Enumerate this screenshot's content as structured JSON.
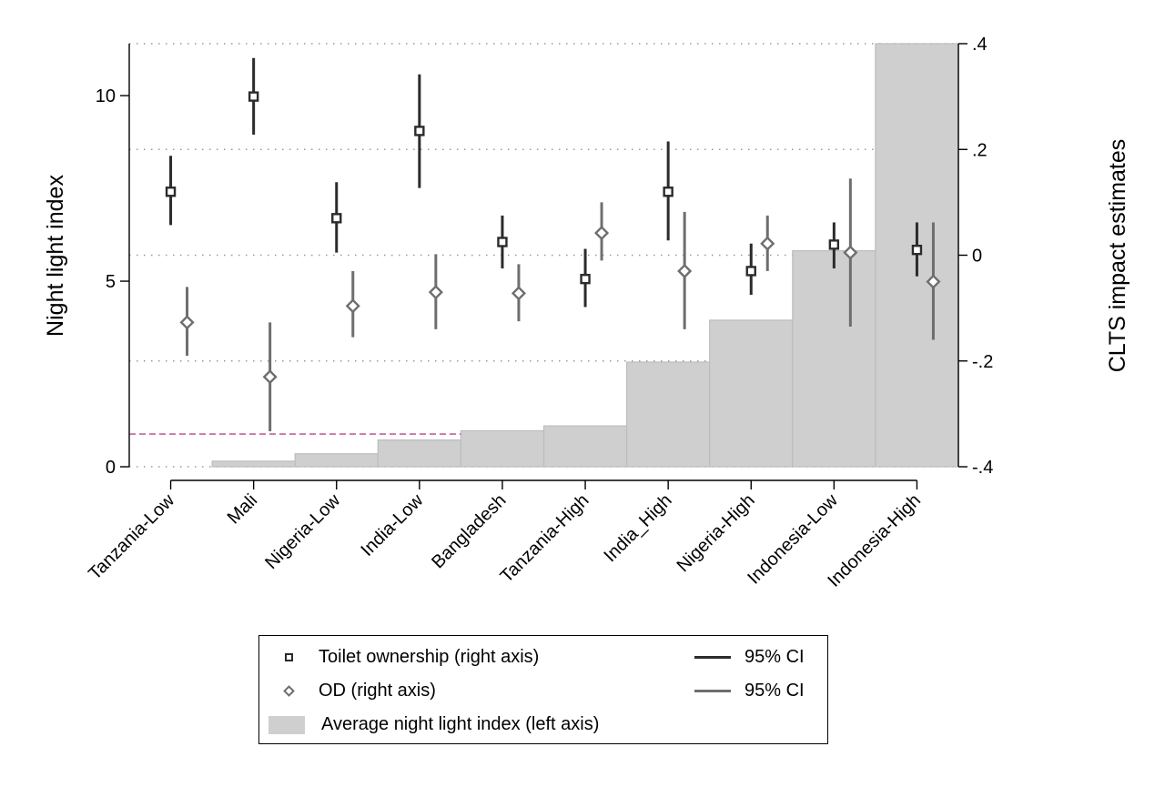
{
  "chart_data": {
    "type": "bar",
    "categories": [
      "Tanzania-Low",
      "Mali",
      "Nigeria-Low",
      "India-Low",
      "Bangladesh",
      "Tanzania-High",
      "India_High",
      "Nigeria-High",
      "Indonesia-Low",
      "Indonesia-High"
    ],
    "left_axis": {
      "label": "Night light index",
      "ylim": [
        0,
        11.4
      ],
      "ticks": [
        0,
        5,
        10
      ],
      "tick_labels": [
        "0",
        "5",
        "10"
      ]
    },
    "right_axis": {
      "label": "CLTS impact estimates",
      "ylim": [
        -0.4,
        0.4
      ],
      "ticks": [
        -0.4,
        -0.2,
        0,
        0.2,
        0.4
      ],
      "tick_labels": [
        "-.4",
        "-.2",
        "0",
        ".2",
        ".4"
      ]
    },
    "series": [
      {
        "name": "Average night light index (left axis)",
        "kind": "bar",
        "axis": "left",
        "color": "#cfcfcf",
        "values": [
          0,
          0.15,
          0.35,
          0.72,
          0.97,
          1.1,
          2.82,
          3.95,
          5.82,
          11.4
        ]
      },
      {
        "name": "Toilet ownership (right axis)",
        "kind": "point",
        "axis": "right",
        "color": "#2b2b2b",
        "values": [
          0.12,
          0.3,
          0.07,
          0.235,
          0.025,
          -0.045,
          0.12,
          -0.03,
          0.02,
          0.01
        ],
        "ci_low": [
          0.057,
          0.228,
          0.005,
          0.127,
          -0.025,
          -0.098,
          0.028,
          -0.075,
          -0.025,
          -0.04
        ],
        "ci_high": [
          0.188,
          0.373,
          0.138,
          0.342,
          0.075,
          0.012,
          0.215,
          0.022,
          0.062,
          0.062
        ]
      },
      {
        "name": "OD (right axis)",
        "kind": "point",
        "axis": "right",
        "color": "#6e6e6e",
        "values": [
          -0.127,
          -0.23,
          -0.096,
          -0.07,
          -0.072,
          0.042,
          -0.03,
          0.022,
          0.005,
          -0.05
        ],
        "ci_low": [
          -0.19,
          -0.333,
          -0.155,
          -0.14,
          -0.125,
          -0.01,
          -0.14,
          -0.03,
          -0.135,
          -0.16
        ],
        "ci_high": [
          -0.06,
          -0.127,
          -0.03,
          0.002,
          -0.017,
          0.1,
          0.082,
          0.075,
          0.145,
          0.062
        ]
      }
    ],
    "reference_line": {
      "axis": "left",
      "value": 0.88,
      "color": "#c0649a",
      "style": "dashed",
      "from_category": 0,
      "to_category": 3
    },
    "grid": "dotted horizontal at right-axis ticks"
  },
  "legend": {
    "toilet_label": "Toilet ownership (right axis)",
    "od_label": "OD (right axis)",
    "bar_label": "Average night light index (left axis)",
    "ci_label_1": "95% CI",
    "ci_label_2": "95% CI",
    "toilet_ci_color": "#2b2b2b",
    "od_ci_color": "#6e6e6e"
  }
}
